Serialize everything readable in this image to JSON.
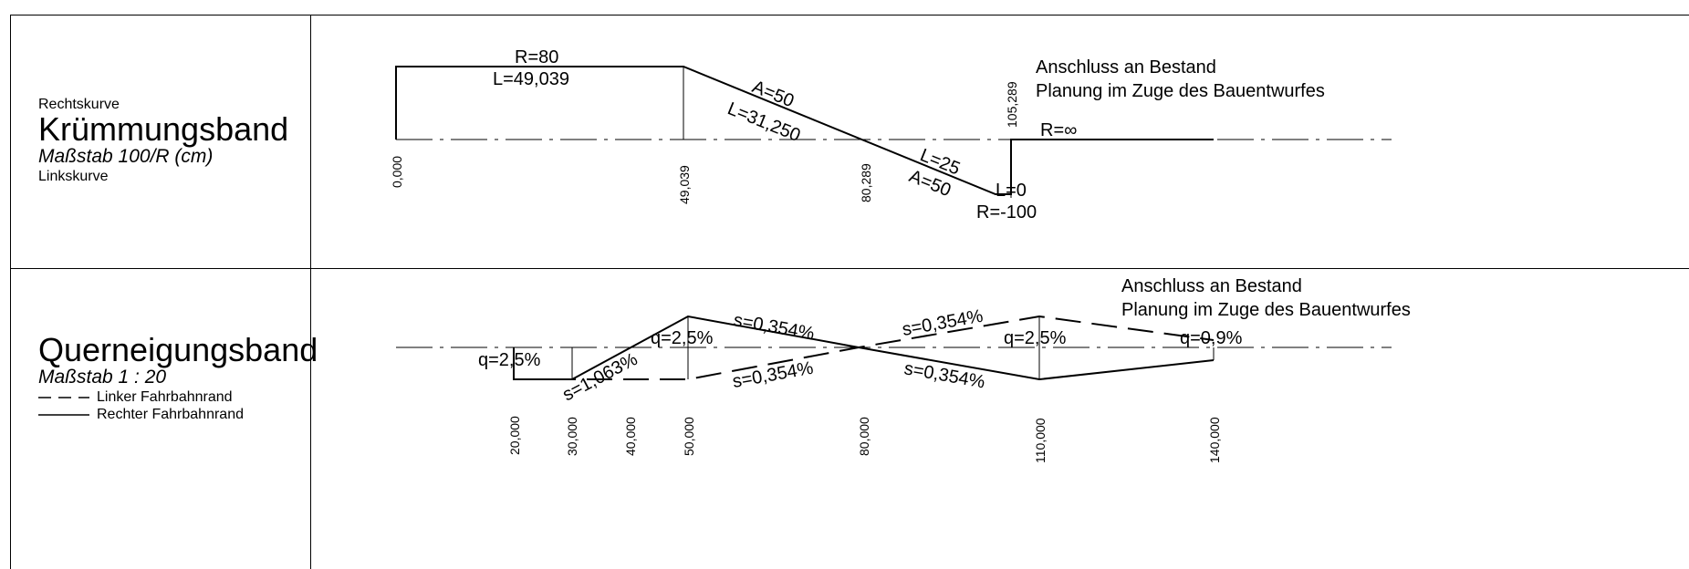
{
  "krummung": {
    "left_top": "Rechtskurve",
    "title": "Krümmungsband",
    "scale": "Maßstab 100/R (cm)",
    "left_bottom": "Linkskurve",
    "stations": [
      "0,000",
      "49,039",
      "80,289",
      "105,289"
    ],
    "labels": {
      "r80": "R=80",
      "l49": "L=49,039",
      "a50_top": "A=50",
      "l31": "L=31,250",
      "l25": "L=25",
      "a50_bottom": "A=50",
      "l0": "L=0",
      "rm100": "R=-100",
      "rinf": "R=∞",
      "note1": "Anschluss an Bestand",
      "note2": "Planung im Zuge des Bauentwurfes"
    }
  },
  "quer": {
    "title": "Querneigungsband",
    "scale": "Maßstab 1 : 20",
    "legend_left": "Linker Fahrbahnrand",
    "legend_right": "Rechter Fahrbahnrand",
    "stations": [
      "20,000",
      "30,000",
      "40,000",
      "50,000",
      "80,000",
      "110,000",
      "140,000"
    ],
    "labels": {
      "q25_a": "q=2,5%",
      "q25_b": "q=2,5%",
      "q25_c": "q=2,5%",
      "q09": "q=0,9%",
      "s1063": "s=1,063%",
      "s354_a": "s=0,354%",
      "s354_b": "s=0,354%",
      "s354_c": "s=0,354%",
      "s354_d": "s=0,354%",
      "note1": "Anschluss an Bestand",
      "note2": "Planung im Zuge des Bauentwurfes"
    }
  }
}
